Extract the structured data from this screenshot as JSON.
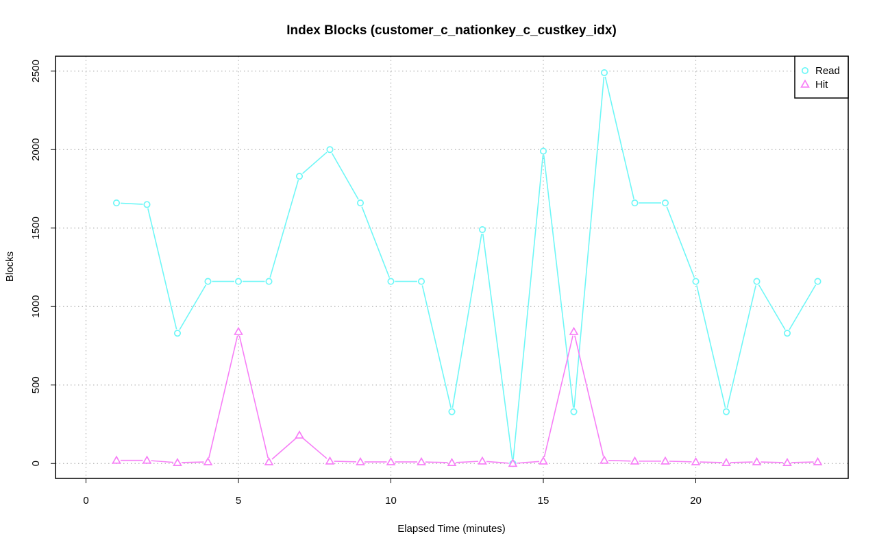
{
  "chart_data": {
    "type": "line",
    "title": "Index Blocks (customer_c_nationkey_c_custkey_idx)",
    "xlabel": "Elapsed Time (minutes)",
    "ylabel": "Blocks",
    "xlim": [
      -1,
      25
    ],
    "ylim": [
      -95,
      2595
    ],
    "x_ticks": [
      0,
      5,
      10,
      15,
      20
    ],
    "y_ticks": [
      0,
      500,
      1000,
      1500,
      2000,
      2500
    ],
    "grid": true,
    "legend_position": "top-right",
    "x": [
      1,
      2,
      3,
      4,
      5,
      6,
      7,
      8,
      9,
      10,
      11,
      12,
      13,
      14,
      15,
      16,
      17,
      18,
      19,
      20,
      21,
      22,
      23,
      24
    ],
    "series": [
      {
        "name": "Read",
        "color": "#6ef7f7",
        "marker": "circle",
        "values": [
          1660,
          1650,
          830,
          1160,
          1160,
          1160,
          1830,
          2000,
          1660,
          1160,
          1160,
          330,
          1490,
          0,
          1990,
          330,
          2490,
          1660,
          1660,
          1160,
          330,
          1160,
          830,
          1160
        ]
      },
      {
        "name": "Hit",
        "color": "#f77ef7",
        "marker": "triangle",
        "values": [
          20,
          20,
          5,
          10,
          840,
          10,
          180,
          15,
          10,
          10,
          10,
          5,
          15,
          0,
          15,
          840,
          20,
          15,
          15,
          10,
          5,
          10,
          5,
          10
        ]
      }
    ]
  }
}
